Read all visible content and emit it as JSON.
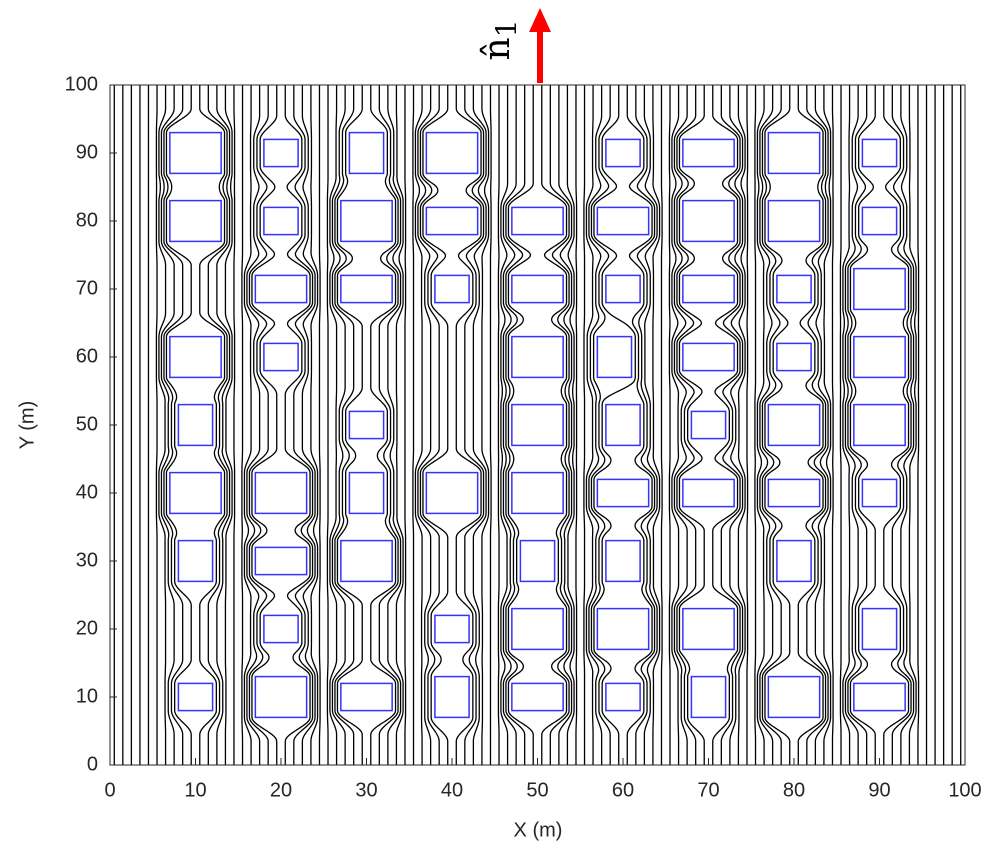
{
  "chart_data": {
    "type": "streamlines",
    "xlabel": "X (m)",
    "ylabel": "Y (m)",
    "annotation": "n̂",
    "annotation_subscript": "1",
    "xlim": [
      0,
      100
    ],
    "ylim": [
      0,
      100
    ],
    "xticks": [
      0,
      10,
      20,
      30,
      40,
      50,
      60,
      70,
      80,
      90,
      100
    ],
    "yticks": [
      0,
      10,
      20,
      30,
      40,
      50,
      60,
      70,
      80,
      90,
      100
    ],
    "line_color": "#000000",
    "rect_color": "#3333ff",
    "arrow_color": "#ff0000",
    "rects": [
      [
        7,
        87,
        6,
        6
      ],
      [
        18,
        88,
        4,
        4
      ],
      [
        28,
        87,
        4,
        6
      ],
      [
        37,
        87,
        6,
        6
      ],
      [
        58,
        88,
        4,
        4
      ],
      [
        67,
        88,
        6,
        4
      ],
      [
        77,
        87,
        6,
        6
      ],
      [
        88,
        88,
        4,
        4
      ],
      [
        7,
        77,
        6,
        6
      ],
      [
        18,
        78,
        4,
        4
      ],
      [
        27,
        77,
        6,
        6
      ],
      [
        37,
        78,
        6,
        4
      ],
      [
        47,
        78,
        6,
        4
      ],
      [
        57,
        78,
        6,
        4
      ],
      [
        67,
        77,
        6,
        6
      ],
      [
        77,
        77,
        6,
        6
      ],
      [
        88,
        78,
        4,
        4
      ],
      [
        17,
        68,
        6,
        4
      ],
      [
        27,
        68,
        6,
        4
      ],
      [
        38,
        68,
        4,
        4
      ],
      [
        47,
        68,
        6,
        4
      ],
      [
        58,
        68,
        4,
        4
      ],
      [
        67,
        68,
        6,
        4
      ],
      [
        78,
        68,
        4,
        4
      ],
      [
        87,
        67,
        6,
        6
      ],
      [
        7,
        57,
        6,
        6
      ],
      [
        18,
        58,
        4,
        4
      ],
      [
        47,
        57,
        6,
        6
      ],
      [
        57,
        57,
        4,
        6
      ],
      [
        67,
        58,
        6,
        4
      ],
      [
        78,
        58,
        4,
        4
      ],
      [
        87,
        57,
        6,
        6
      ],
      [
        8,
        47,
        4,
        6
      ],
      [
        28,
        48,
        4,
        4
      ],
      [
        47,
        47,
        6,
        6
      ],
      [
        58,
        47,
        4,
        6
      ],
      [
        68,
        48,
        4,
        4
      ],
      [
        77,
        47,
        6,
        6
      ],
      [
        87,
        47,
        6,
        6
      ],
      [
        7,
        37,
        6,
        6
      ],
      [
        17,
        37,
        6,
        6
      ],
      [
        28,
        37,
        4,
        6
      ],
      [
        37,
        37,
        6,
        6
      ],
      [
        47,
        37,
        6,
        6
      ],
      [
        57,
        38,
        6,
        4
      ],
      [
        67,
        38,
        6,
        4
      ],
      [
        77,
        38,
        6,
        4
      ],
      [
        88,
        38,
        4,
        4
      ],
      [
        8,
        27,
        4,
        6
      ],
      [
        17,
        28,
        6,
        4
      ],
      [
        27,
        27,
        6,
        6
      ],
      [
        48,
        27,
        4,
        6
      ],
      [
        58,
        27,
        4,
        6
      ],
      [
        78,
        27,
        4,
        6
      ],
      [
        18,
        18,
        4,
        4
      ],
      [
        38,
        18,
        4,
        4
      ],
      [
        47,
        17,
        6,
        6
      ],
      [
        57,
        17,
        6,
        6
      ],
      [
        67,
        17,
        6,
        6
      ],
      [
        88,
        17,
        4,
        6
      ],
      [
        8,
        8,
        4,
        4
      ],
      [
        17,
        7,
        6,
        6
      ],
      [
        27,
        8,
        6,
        4
      ],
      [
        38,
        7,
        4,
        6
      ],
      [
        47,
        8,
        6,
        4
      ],
      [
        58,
        8,
        4,
        4
      ],
      [
        68,
        7,
        4,
        6
      ],
      [
        77,
        7,
        6,
        6
      ],
      [
        87,
        8,
        6,
        4
      ]
    ],
    "streamline_seeds": [
      0.5,
      1.5,
      2.5,
      3.5,
      4.5,
      5.5,
      6.5,
      7.5,
      8.5,
      9.5,
      10.5,
      11.5,
      12.5,
      13.5,
      14.5,
      15.5,
      16.5,
      17.5,
      18.5,
      19.5,
      20.5,
      21.5,
      22.5,
      23.5,
      24.5,
      25.5,
      26.5,
      27.5,
      28.5,
      29.5,
      30.5,
      31.5,
      32.5,
      33.5,
      34.5,
      35.5,
      36.5,
      37.5,
      38.5,
      39.5,
      40.5,
      41.5,
      42.5,
      43.5,
      44.5,
      45.5,
      46.5,
      47.5,
      48.5,
      49.5,
      50.5,
      51.5,
      52.5,
      53.5,
      54.5,
      55.5,
      56.5,
      57.5,
      58.5,
      59.5,
      60.5,
      61.5,
      62.5,
      63.5,
      64.5,
      65.5,
      66.5,
      67.5,
      68.5,
      69.5,
      70.5,
      71.5,
      72.5,
      73.5,
      74.5,
      75.5,
      76.5,
      77.5,
      78.5,
      79.5,
      80.5,
      81.5,
      82.5,
      83.5,
      84.5,
      85.5,
      86.5,
      87.5,
      88.5,
      89.5,
      90.5,
      91.5,
      92.5,
      93.5,
      94.5,
      95.5,
      96.5,
      97.5,
      98.5,
      99.5
    ]
  }
}
